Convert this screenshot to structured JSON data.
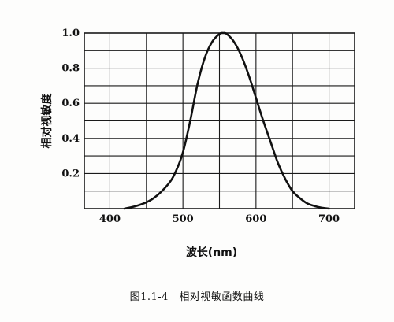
{
  "chart_data": {
    "type": "line",
    "title": "",
    "xlabel": "波长(nm)",
    "ylabel": "相对视敏度",
    "xlim": [
      365,
      735
    ],
    "ylim": [
      0,
      1.0
    ],
    "x_ticks": [
      400,
      500,
      600,
      700
    ],
    "y_ticks": [
      0.2,
      0.4,
      0.6,
      0.8,
      1.0
    ],
    "x_tick_labels": [
      "400",
      "500",
      "600",
      "700"
    ],
    "y_tick_labels": [
      "0.2",
      "0.4",
      "0.6",
      "0.8",
      "1.0"
    ],
    "grid": true,
    "series": [
      {
        "x": [
          420,
          440,
          460,
          480,
          490,
          500,
          510,
          520,
          530,
          540,
          550,
          555,
          560,
          570,
          580,
          590,
          600,
          610,
          620,
          630,
          640,
          650,
          660,
          670,
          680,
          690,
          700
        ],
        "y": [
          0.0,
          0.02,
          0.06,
          0.14,
          0.21,
          0.32,
          0.5,
          0.71,
          0.86,
          0.95,
          0.995,
          1.0,
          0.995,
          0.95,
          0.87,
          0.76,
          0.63,
          0.5,
          0.38,
          0.26,
          0.17,
          0.1,
          0.06,
          0.03,
          0.015,
          0.005,
          0.0
        ]
      }
    ]
  },
  "caption": "图1.1-4　相对视敏函数曲线",
  "colors": {
    "line": "#111111",
    "grid": "#1a1a1a",
    "paper": "#fdfdfc"
  }
}
